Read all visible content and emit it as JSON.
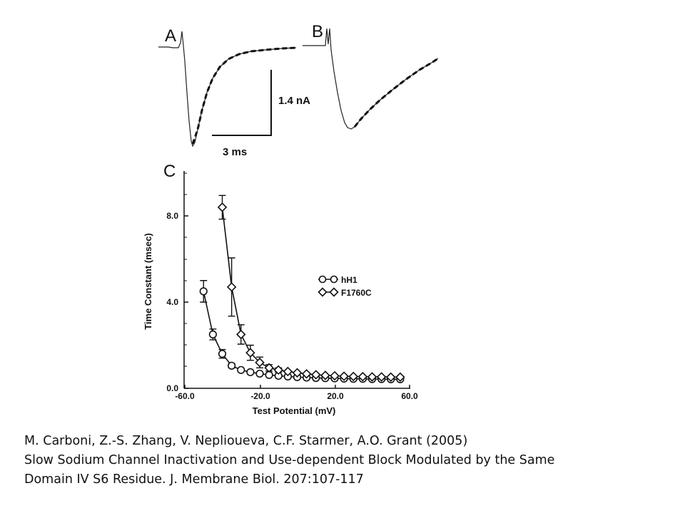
{
  "panels": {
    "a_label": "A",
    "b_label": "B",
    "c_label": "C",
    "scale_current": "1.4 nA",
    "scale_time": "3 ms"
  },
  "chart_data": {
    "type": "scatter",
    "panel": "C",
    "xlabel": "Test Potential (mV)",
    "ylabel": "Time Constant (msec)",
    "xlim": [
      -60,
      60
    ],
    "ylim": [
      0,
      10
    ],
    "xticks": [
      "-60.0",
      "-20.0",
      "20.0",
      "60.0"
    ],
    "yticks": [
      "0.0",
      "4.0",
      "8.0"
    ],
    "legend_position": "right",
    "series": [
      {
        "name": "hH1",
        "marker": "circle",
        "x": [
          -50,
          -45,
          -40,
          -35,
          -30,
          -25,
          -20,
          -15,
          -10,
          -5,
          0,
          5,
          10,
          15,
          20,
          25,
          30,
          35,
          40,
          45,
          50,
          55
        ],
        "y": [
          4.5,
          2.5,
          1.6,
          1.05,
          0.85,
          0.75,
          0.68,
          0.62,
          0.58,
          0.55,
          0.52,
          0.5,
          0.48,
          0.47,
          0.46,
          0.45,
          0.44,
          0.44,
          0.43,
          0.43,
          0.42,
          0.42
        ],
        "err": [
          0.5,
          0.25,
          0.2,
          0.1,
          0.08,
          0.05,
          0.05,
          0.04,
          0.04,
          0.03,
          0.03,
          0.03,
          0.03,
          0.03,
          0.03,
          0.03,
          0.03,
          0.03,
          0.03,
          0.03,
          0.03,
          0.03
        ]
      },
      {
        "name": "F1760C",
        "marker": "diamond",
        "x": [
          -40,
          -35,
          -30,
          -25,
          -20,
          -15,
          -10,
          -5,
          0,
          5,
          10,
          15,
          20,
          25,
          30,
          35,
          40,
          45,
          50,
          55
        ],
        "y": [
          8.4,
          4.7,
          2.5,
          1.65,
          1.2,
          0.95,
          0.85,
          0.78,
          0.72,
          0.67,
          0.63,
          0.6,
          0.58,
          0.56,
          0.55,
          0.54,
          0.53,
          0.53,
          0.52,
          0.52
        ],
        "err": [
          0.55,
          1.35,
          0.45,
          0.35,
          0.25,
          0.15,
          0.1,
          0.08,
          0.06,
          0.05,
          0.05,
          0.05,
          0.05,
          0.05,
          0.05,
          0.05,
          0.05,
          0.05,
          0.05,
          0.05
        ]
      }
    ]
  },
  "citation": {
    "line1": "M. Carboni, Z.-S. Zhang, V. Neplioueva, C.F. Starmer, A.O. Grant (2005)",
    "line2": "Slow Sodium Channel Inactivation and Use-dependent Block Modulated by the Same",
    "line3": "Domain IV S6 Residue. J. Membrane Biol. 207:107-117"
  }
}
